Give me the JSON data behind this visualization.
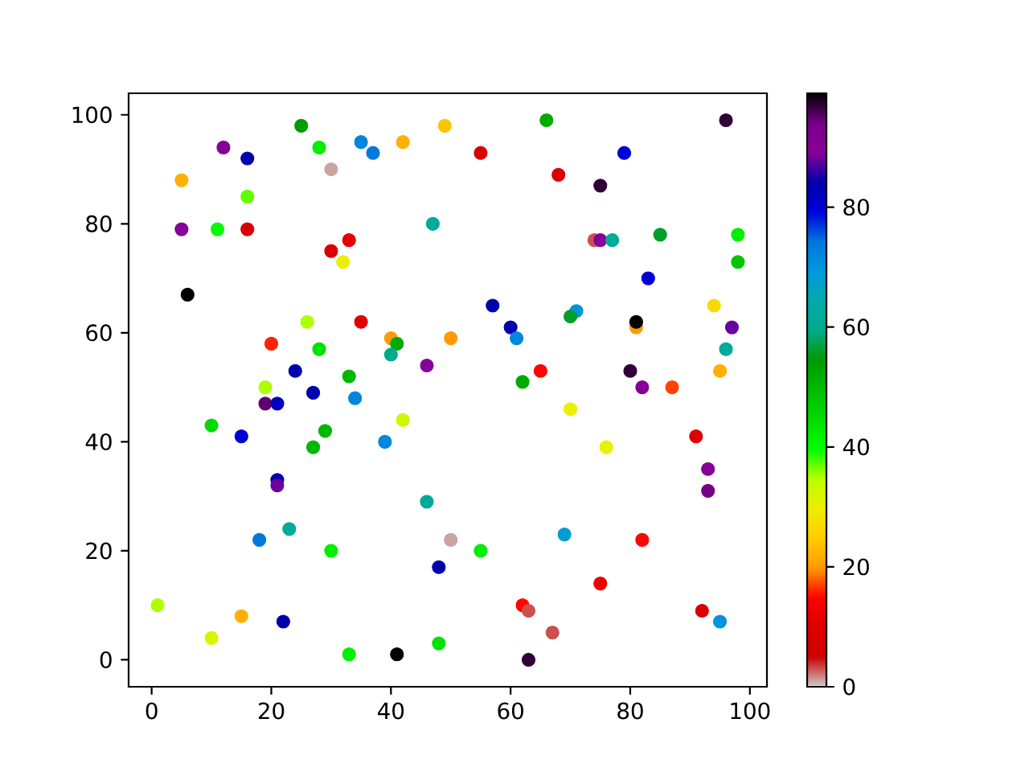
{
  "chart_data": {
    "type": "scatter",
    "x": [
      25,
      12,
      16,
      28,
      30,
      35,
      37,
      42,
      49,
      5,
      16,
      5,
      11,
      16,
      47,
      33,
      30,
      32,
      6,
      26,
      35,
      20,
      28,
      40,
      41,
      40,
      46,
      33,
      24,
      19,
      27,
      19,
      21,
      34,
      42,
      10,
      15,
      29,
      27,
      39,
      21,
      21,
      46,
      23,
      18,
      30,
      50,
      48,
      1,
      15,
      22,
      10,
      33,
      41,
      48,
      55,
      66,
      96,
      79,
      68,
      75,
      74,
      75,
      77,
      85,
      98,
      98,
      83,
      57,
      94,
      71,
      70,
      81,
      81,
      60,
      61,
      97,
      50,
      96,
      80,
      95,
      65,
      62,
      82,
      87,
      70,
      76,
      91,
      93,
      93,
      55,
      69,
      82,
      75,
      62,
      63,
      67,
      63,
      92,
      95
    ],
    "values": [
      98,
      94,
      92,
      94,
      90,
      95,
      93,
      95,
      98,
      88,
      85,
      79,
      79,
      79,
      80,
      77,
      75,
      73,
      67,
      62,
      62,
      58,
      57,
      59,
      58,
      56,
      54,
      52,
      53,
      50,
      49,
      47,
      47,
      48,
      44,
      43,
      41,
      42,
      39,
      40,
      33,
      32,
      29,
      24,
      22,
      20,
      22,
      17,
      10,
      8,
      7,
      4,
      1,
      1,
      3,
      93,
      99,
      99,
      93,
      89,
      87,
      77,
      77,
      77,
      78,
      78,
      73,
      70,
      65,
      65,
      64,
      63,
      61,
      62,
      61,
      59,
      61,
      59,
      57,
      53,
      53,
      53,
      51,
      50,
      50,
      46,
      39,
      41,
      35,
      31,
      20,
      23,
      22,
      14,
      10,
      9,
      5,
      0,
      9,
      7
    ],
    "cvalues": [
      54,
      90,
      84,
      42,
      1,
      72,
      74,
      22,
      24,
      22,
      37,
      90,
      40,
      9,
      62,
      11,
      9,
      30,
      99,
      35,
      10,
      16,
      44,
      20,
      52,
      60,
      90,
      50,
      84,
      35,
      84,
      95,
      82,
      72,
      33,
      45,
      80,
      50,
      50,
      72,
      84,
      88,
      62,
      62,
      74,
      42,
      1,
      84,
      35,
      22,
      84,
      32,
      42,
      99,
      44,
      9,
      52,
      97,
      80,
      9,
      97,
      3,
      90,
      62,
      56,
      42,
      48,
      80,
      84,
      27,
      70,
      56,
      20,
      99,
      84,
      72,
      88,
      20,
      62,
      97,
      22,
      15,
      52,
      90,
      17,
      30,
      30,
      10,
      90,
      94,
      42,
      68,
      15,
      12,
      15,
      3,
      3,
      97,
      9,
      70
    ],
    "marker": "circle",
    "xlim": [
      -3.85,
      102.85
    ],
    "ylim": [
      -4.95,
      103.95
    ],
    "xticks": [
      0,
      20,
      40,
      60,
      80,
      100
    ],
    "yticks": [
      0,
      20,
      40,
      60,
      80,
      100
    ],
    "clim": [
      0,
      99
    ],
    "cticks": [
      0,
      20,
      40,
      60,
      80
    ]
  }
}
